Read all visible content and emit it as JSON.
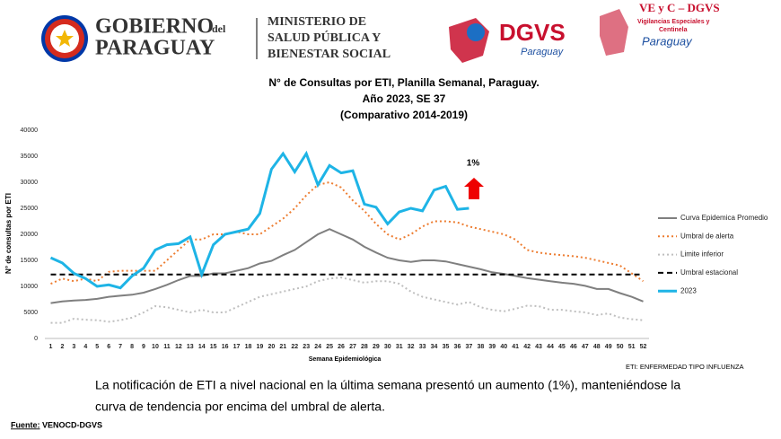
{
  "header": {
    "gov_line1": "GOBIERNO",
    "gov_small": "del",
    "gov_line2": "PARAGUAY",
    "ministry": [
      "MINISTERIO DE",
      "SALUD PÚBLICA Y",
      "BIENESTAR SOCIAL"
    ],
    "dgvs": "DGVS",
    "dgvs_sub": "Paraguay",
    "vec": "VE y C – DGVS",
    "vec_sub": [
      "Vigilancias Especiales y",
      "Centinela"
    ],
    "vec_place": "Paraguay"
  },
  "chart_data": {
    "type": "line",
    "title": [
      "N° de Consultas por ETI, Planilla Semanal, Paraguay.",
      "Año 2023, SE 37",
      "(Comparativo 2014-2019)"
    ],
    "xlabel": "Semana Epidemiológica",
    "ylabel": "N° de consultas por ETI",
    "categories": [
      "1",
      "2",
      "3",
      "4",
      "5",
      "6",
      "7",
      "8",
      "9",
      "10",
      "11",
      "12",
      "13",
      "14",
      "15",
      "16",
      "17",
      "18",
      "19",
      "20",
      "21",
      "22",
      "23",
      "24",
      "25",
      "26",
      "27",
      "28",
      "29",
      "30",
      "31",
      "32",
      "33",
      "34",
      "35",
      "36",
      "37",
      "38",
      "39",
      "40",
      "41",
      "42",
      "43",
      "44",
      "45",
      "46",
      "47",
      "48",
      "49",
      "50",
      "51",
      "52"
    ],
    "ylim": [
      0,
      40000
    ],
    "yticks": [
      0,
      5000,
      10000,
      15000,
      20000,
      25000,
      30000,
      35000,
      40000
    ],
    "grid": false,
    "legend": "right",
    "annotation": "1%",
    "series": [
      {
        "name": "Curva Epidemica Promedio",
        "color": "#7f7f7f",
        "style": "solid",
        "width": 2,
        "values": [
          6800,
          7100,
          7300,
          7400,
          7600,
          8000,
          8200,
          8400,
          8800,
          9500,
          10300,
          11200,
          12000,
          12000,
          12500,
          12500,
          13000,
          13500,
          14400,
          14900,
          16000,
          17000,
          18500,
          20000,
          21000,
          20000,
          19000,
          17600,
          16500,
          15500,
          15000,
          14700,
          15000,
          15000,
          14800,
          14300,
          13800,
          13300,
          12700,
          12400,
          12000,
          11600,
          11300,
          11000,
          10700,
          10500,
          10100,
          9500,
          9500,
          8700,
          8000,
          7100
        ]
      },
      {
        "name": "Umbral de alerta",
        "color": "#ed7d31",
        "style": "dotted",
        "width": 2,
        "values": [
          10500,
          11500,
          11000,
          11500,
          11000,
          12800,
          13000,
          13000,
          13000,
          13000,
          15000,
          17000,
          19000,
          19000,
          20000,
          20000,
          20500,
          20000,
          20000,
          21500,
          23000,
          25000,
          27500,
          29500,
          30000,
          29000,
          26500,
          24500,
          22000,
          20000,
          19000,
          20000,
          21500,
          22500,
          22500,
          22300,
          21500,
          21000,
          20500,
          20000,
          19000,
          17000,
          16500,
          16200,
          16000,
          15800,
          15500,
          15000,
          14500,
          14000,
          12500,
          11000
        ]
      },
      {
        "name": "Limite inferior",
        "color": "#bfbfbf",
        "style": "dotted",
        "width": 2,
        "values": [
          3000,
          3000,
          3800,
          3600,
          3500,
          3200,
          3500,
          4000,
          5000,
          6200,
          6000,
          5500,
          5000,
          5500,
          5000,
          5000,
          6000,
          7000,
          8000,
          8500,
          9000,
          9500,
          10000,
          11000,
          11500,
          11700,
          11200,
          10700,
          11000,
          11000,
          10500,
          9000,
          8000,
          7500,
          7000,
          6500,
          7000,
          6000,
          5500,
          5200,
          5700,
          6300,
          6200,
          5500,
          5500,
          5200,
          5000,
          4500,
          4800,
          4000,
          3700,
          3500
        ]
      },
      {
        "name": "Umbral estacional",
        "color": "#000000",
        "style": "dashed",
        "width": 2,
        "values": [
          12300,
          12300,
          12300,
          12300,
          12300,
          12300,
          12300,
          12300,
          12300,
          12300,
          12300,
          12300,
          12300,
          12300,
          12300,
          12300,
          12300,
          12300,
          12300,
          12300,
          12300,
          12300,
          12300,
          12300,
          12300,
          12300,
          12300,
          12300,
          12300,
          12300,
          12300,
          12300,
          12300,
          12300,
          12300,
          12300,
          12300,
          12300,
          12300,
          12300,
          12300,
          12300,
          12300,
          12300,
          12300,
          12300,
          12300,
          12300,
          12300,
          12300,
          12300,
          12300
        ]
      },
      {
        "name": "2023",
        "color": "#1eb4e6",
        "style": "solid",
        "width": 3,
        "values": [
          15500,
          14500,
          12500,
          11500,
          10000,
          10300,
          9700,
          12000,
          13500,
          17000,
          18000,
          18200,
          19500,
          12300,
          18000,
          20000,
          20500,
          21000,
          24000,
          32500,
          35500,
          32000,
          35500,
          29500,
          33200,
          31800,
          32200,
          25800,
          25200,
          22000,
          24300,
          25000,
          24500,
          28500,
          29200,
          24800,
          25000,
          null,
          null,
          null,
          null,
          null,
          null,
          null,
          null,
          null,
          null,
          null,
          null,
          null,
          null,
          null
        ]
      }
    ]
  },
  "note": "ETI: ENFERMEDAD TIPO INFLUENZA",
  "text": [
    "La notificación de ETI a nivel nacional en la última semana presentó un aumento (1%), manteniéndose la",
    "curva de tendencia  por encima del umbral de alerta."
  ],
  "footer": {
    "label": "Fuente:",
    "source": " VENOCD-DGVS"
  }
}
